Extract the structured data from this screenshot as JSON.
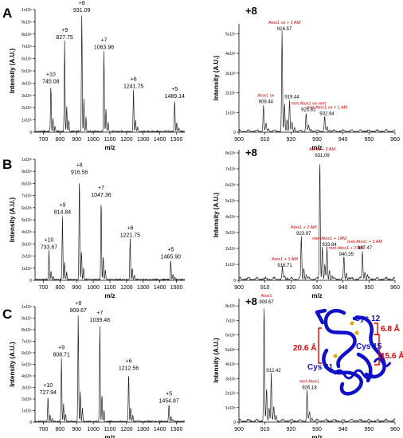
{
  "colors": {
    "peak_label": "#000000",
    "annotation_red": "#e00000",
    "protein_blue": "#1010c8",
    "axis": "#000000",
    "trace": "#222222"
  },
  "chart_data": [
    {
      "id": "A-left",
      "panel_letter": "A",
      "type": "line",
      "xlabel": "m/z",
      "ylabel": "Intensity (A.U.)",
      "xlim": [
        650,
        1550
      ],
      "ylim": [
        0,
        10
      ],
      "x_ticks": [
        "700",
        "800",
        "900",
        "1000",
        "1100",
        "1200",
        "1300",
        "1400",
        "1500"
      ],
      "x_tick_values": [
        700,
        800,
        900,
        1000,
        1100,
        1200,
        1300,
        1400,
        1500
      ],
      "y_ticks": [
        "0",
        "1x10⁵",
        "2x10⁵",
        "3x10⁵",
        "4x10⁵",
        "5x10⁵",
        "6x10⁵",
        "7x10⁵",
        "8x10⁵",
        "9x10⁵",
        "1x10⁶"
      ],
      "peaks": [
        {
          "mz": 745.08,
          "height": 3.8,
          "charge": "+10",
          "label": "745.08"
        },
        {
          "mz": 827.75,
          "height": 7.4,
          "charge": "+9",
          "label": "827.75"
        },
        {
          "mz": 931.09,
          "height": 9.6,
          "charge": "+8",
          "label": "931.09"
        },
        {
          "mz": 1063.96,
          "height": 6.6,
          "charge": "+7",
          "label": "1063.96"
        },
        {
          "mz": 1241.75,
          "height": 3.4,
          "charge": "+6",
          "label": "1241.75"
        },
        {
          "mz": 1489.14,
          "height": 2.6,
          "charge": "+5",
          "label": "1489.14"
        }
      ]
    },
    {
      "id": "A-right",
      "panel_letter": "",
      "type": "line",
      "charge_state": "+8",
      "xlabel": "m/z",
      "ylabel": "Intensity (A.U.)",
      "xlim": [
        900,
        960
      ],
      "ylim": [
        0,
        5.5
      ],
      "x_ticks": [
        "900",
        "910",
        "920",
        "930",
        "940",
        "950",
        "960"
      ],
      "x_tick_values": [
        900,
        910,
        920,
        930,
        940,
        950,
        960
      ],
      "y_ticks": [
        "0",
        "1x10⁵",
        "2x10⁵",
        "3x10⁵",
        "4x10⁵",
        "5x10⁵"
      ],
      "peaks": [
        {
          "mz": 909.44,
          "height": 1.35,
          "label": "909.44",
          "annotation": "Atox1 ox"
        },
        {
          "mz": 916.57,
          "height": 5.05,
          "label": "916.57",
          "annotation": "Atox1 ox + 1 AM"
        },
        {
          "mz": 919.44,
          "height": 1.6,
          "label": "919.44",
          "annotation": ""
        },
        {
          "mz": 925.81,
          "height": 0.95,
          "label": "925.81",
          "annotation": "met-Atox1 ox-met"
        },
        {
          "mz": 932.94,
          "height": 0.75,
          "label": "932.94",
          "annotation": "met-Atox1 ox + 1 AM"
        }
      ]
    },
    {
      "id": "B-left",
      "panel_letter": "B",
      "type": "line",
      "xlabel": "m/z",
      "ylabel": "Intensity (A.U.)",
      "xlim": [
        650,
        1550
      ],
      "ylim": [
        0,
        10
      ],
      "x_ticks": [
        "700",
        "800",
        "900",
        "1000",
        "1100",
        "1200",
        "1300",
        "1400",
        "1500"
      ],
      "x_tick_values": [
        700,
        800,
        900,
        1000,
        1100,
        1200,
        1300,
        1400,
        1500
      ],
      "y_ticks": [
        "0",
        "1x10⁵",
        "2x10⁵",
        "3x10⁵",
        "4x10⁵",
        "5x10⁵",
        "6x10⁵",
        "7x10⁵",
        "8x10⁵",
        "9x10⁵",
        "1x10⁶"
      ],
      "peaks": [
        {
          "mz": 733.67,
          "height": 2.4,
          "charge": "+10",
          "label": "733.67"
        },
        {
          "mz": 814.84,
          "height": 5.3,
          "charge": "+9",
          "label": "814.84"
        },
        {
          "mz": 916.56,
          "height": 8.6,
          "charge": "+8",
          "label": "916.56"
        },
        {
          "mz": 1047.36,
          "height": 6.7,
          "charge": "+7",
          "label": "1047.36"
        },
        {
          "mz": 1221.75,
          "height": 3.4,
          "charge": "+6",
          "label": "1221.75"
        },
        {
          "mz": 1465.9,
          "height": 1.6,
          "charge": "+5",
          "label": "1465.90"
        }
      ]
    },
    {
      "id": "B-right",
      "panel_letter": "",
      "type": "line",
      "charge_state": "+8",
      "xlabel": "m/z",
      "ylabel": "Intensity (A.U.)",
      "xlim": [
        900,
        960
      ],
      "ylim": [
        0,
        8.2
      ],
      "x_ticks": [
        "900",
        "910",
        "920",
        "930",
        "940",
        "950",
        "960"
      ],
      "x_tick_values": [
        900,
        910,
        920,
        930,
        940,
        950,
        960
      ],
      "y_ticks": [
        "0",
        "1x10⁵",
        "2x10⁵",
        "3x10⁵",
        "4x10⁵",
        "5x10⁵",
        "6x10⁵",
        "7x10⁵",
        "8x10⁵"
      ],
      "peaks": [
        {
          "mz": 916.71,
          "height": 0.7,
          "label": "916.71",
          "annotation": "Atox1 + 3 AM"
        },
        {
          "mz": 923.97,
          "height": 2.7,
          "label": "923.97",
          "annotation": "Atox1 + 2 AM"
        },
        {
          "mz": 931.09,
          "height": 7.6,
          "label": "931.09",
          "annotation": "Atox1 + 3 AM"
        },
        {
          "mz": 933.84,
          "height": 2.0,
          "label": "933.84",
          "annotation": "met-Atox1 + 1AM"
        },
        {
          "mz": 940.35,
          "height": 1.4,
          "label": "940.35",
          "annotation": "met-Atox1 + 2 AM"
        },
        {
          "mz": 947.47,
          "height": 1.8,
          "label": "947.47",
          "annotation": "met-Atox1 + 3 AM"
        }
      ]
    },
    {
      "id": "C-left",
      "panel_letter": "C",
      "type": "line",
      "xlabel": "m/z",
      "ylabel": "Intensity (A.U.)",
      "xlim": [
        650,
        1550
      ],
      "ylim": [
        0,
        10
      ],
      "x_ticks": [
        "700",
        "800",
        "900",
        "1000",
        "1100",
        "1200",
        "1300",
        "1400",
        "1500"
      ],
      "x_tick_values": [
        700,
        800,
        900,
        1000,
        1100,
        1200,
        1300,
        1400,
        1500
      ],
      "y_ticks": [
        "0",
        "1x10⁵",
        "2x10⁵",
        "3x10⁵",
        "4x10⁵",
        "5x10⁵",
        "6x10⁵",
        "7x10⁵",
        "8x10⁵",
        "9x10⁵",
        "1x10⁶"
      ],
      "peaks": [
        {
          "mz": 727.94,
          "height": 2.2,
          "charge": "+10",
          "label": "727.94"
        },
        {
          "mz": 808.71,
          "height": 5.5,
          "charge": "+9",
          "label": "808.71"
        },
        {
          "mz": 909.67,
          "height": 9.3,
          "charge": "+8",
          "label": "909.67"
        },
        {
          "mz": 1039.48,
          "height": 8.5,
          "charge": "+7",
          "label": "1039.48"
        },
        {
          "mz": 1212.56,
          "height": 4.3,
          "charge": "+6",
          "label": "1212.56"
        },
        {
          "mz": 1454.87,
          "height": 1.5,
          "charge": "+5",
          "label": "1454.87"
        }
      ]
    },
    {
      "id": "C-right",
      "panel_letter": "",
      "type": "line",
      "charge_state": "+8",
      "xlabel": "m/z",
      "ylabel": "Intensity (A.U.)",
      "xlim": [
        900,
        960
      ],
      "ylim": [
        0,
        8.5
      ],
      "x_ticks": [
        "900",
        "910",
        "920",
        "930",
        "940",
        "950",
        "960"
      ],
      "x_tick_values": [
        900,
        910,
        920,
        930,
        940,
        950,
        960
      ],
      "y_ticks": [
        "0",
        "1x10⁵",
        "2x10⁵",
        "3x10⁵",
        "4x10⁵",
        "5x10⁵",
        "6x10⁵",
        "7x10⁵",
        "8x10⁵"
      ],
      "peaks": [
        {
          "mz": 909.67,
          "height": 8.0,
          "label": "909.67",
          "annotation": "Atox1"
        },
        {
          "mz": 912.42,
          "height": 3.3,
          "label": "912.42",
          "annotation": ""
        },
        {
          "mz": 926.18,
          "height": 2.1,
          "label": "926.18",
          "annotation": "met-Atox1"
        }
      ]
    }
  ],
  "structure_inset": {
    "residues": [
      "Cys 12",
      "Cys 15",
      "Cys 41"
    ],
    "distances": [
      "6.8 Å",
      "15.6 Å",
      "20.6 Å"
    ]
  }
}
